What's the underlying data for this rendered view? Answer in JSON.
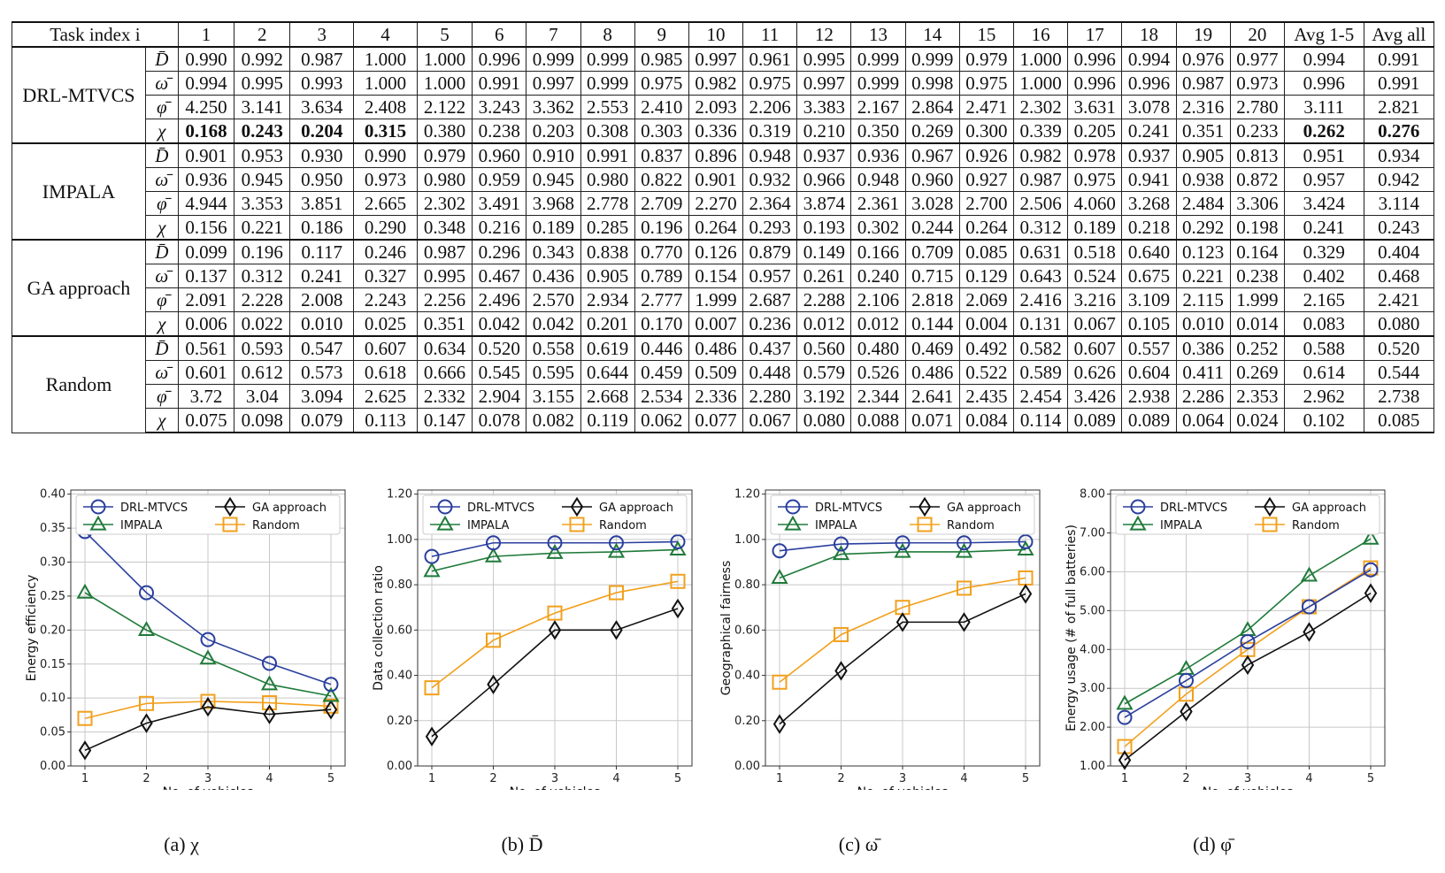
{
  "table": {
    "header": [
      "Task index i",
      "1",
      "2",
      "3",
      "4",
      "5",
      "6",
      "7",
      "8",
      "9",
      "10",
      "11",
      "12",
      "13",
      "14",
      "15",
      "16",
      "17",
      "18",
      "19",
      "20",
      "Avg 1-5",
      "Avg all"
    ],
    "groups": [
      {
        "method": "DRL-MTVCS",
        "rows": [
          {
            "metric": "D̄",
            "values": [
              "0.990",
              "0.992",
              "0.987",
              "1.000",
              "1.000",
              "0.996",
              "0.999",
              "0.999",
              "0.985",
              "0.997",
              "0.961",
              "0.995",
              "0.999",
              "0.999",
              "0.979",
              "1.000",
              "0.996",
              "0.994",
              "0.976",
              "0.977",
              "0.994",
              "0.991"
            ]
          },
          {
            "metric": "ω̄",
            "values": [
              "0.994",
              "0.995",
              "0.993",
              "1.000",
              "1.000",
              "0.991",
              "0.997",
              "0.999",
              "0.975",
              "0.982",
              "0.975",
              "0.997",
              "0.999",
              "0.998",
              "0.975",
              "1.000",
              "0.996",
              "0.996",
              "0.987",
              "0.973",
              "0.996",
              "0.991"
            ]
          },
          {
            "metric": "φ̄",
            "values": [
              "4.250",
              "3.141",
              "3.634",
              "2.408",
              "2.122",
              "3.243",
              "3.362",
              "2.553",
              "2.410",
              "2.093",
              "2.206",
              "3.383",
              "2.167",
              "2.864",
              "2.471",
              "2.302",
              "3.631",
              "3.078",
              "2.316",
              "2.780",
              "3.111",
              "2.821"
            ]
          },
          {
            "metric": "χ",
            "values": [
              "0.168",
              "0.243",
              "0.204",
              "0.315",
              "0.380",
              "0.238",
              "0.203",
              "0.308",
              "0.303",
              "0.336",
              "0.319",
              "0.210",
              "0.350",
              "0.269",
              "0.300",
              "0.339",
              "0.205",
              "0.241",
              "0.351",
              "0.233",
              "0.262",
              "0.276"
            ]
          }
        ]
      },
      {
        "method": "IMPALA",
        "rows": [
          {
            "metric": "D̄",
            "values": [
              "0.901",
              "0.953",
              "0.930",
              "0.990",
              "0.979",
              "0.960",
              "0.910",
              "0.991",
              "0.837",
              "0.896",
              "0.948",
              "0.937",
              "0.936",
              "0.967",
              "0.926",
              "0.982",
              "0.978",
              "0.937",
              "0.905",
              "0.813",
              "0.951",
              "0.934"
            ]
          },
          {
            "metric": "ω̄",
            "values": [
              "0.936",
              "0.945",
              "0.950",
              "0.973",
              "0.980",
              "0.959",
              "0.945",
              "0.980",
              "0.822",
              "0.901",
              "0.932",
              "0.966",
              "0.948",
              "0.960",
              "0.927",
              "0.987",
              "0.975",
              "0.941",
              "0.938",
              "0.872",
              "0.957",
              "0.942"
            ]
          },
          {
            "metric": "φ̄",
            "values": [
              "4.944",
              "3.353",
              "3.851",
              "2.665",
              "2.302",
              "3.491",
              "3.968",
              "2.778",
              "2.709",
              "2.270",
              "2.364",
              "3.874",
              "2.361",
              "3.028",
              "2.700",
              "2.506",
              "4.060",
              "3.268",
              "2.484",
              "3.306",
              "3.424",
              "3.114"
            ]
          },
          {
            "metric": "χ",
            "values": [
              "0.156",
              "0.221",
              "0.186",
              "0.290",
              "0.348",
              "0.216",
              "0.189",
              "0.285",
              "0.196",
              "0.264",
              "0.293",
              "0.193",
              "0.302",
              "0.244",
              "0.264",
              "0.312",
              "0.189",
              "0.218",
              "0.292",
              "0.198",
              "0.241",
              "0.243"
            ]
          }
        ]
      },
      {
        "method": "GA approach",
        "rows": [
          {
            "metric": "D̄",
            "values": [
              "0.099",
              "0.196",
              "0.117",
              "0.246",
              "0.987",
              "0.296",
              "0.343",
              "0.838",
              "0.770",
              "0.126",
              "0.879",
              "0.149",
              "0.166",
              "0.709",
              "0.085",
              "0.631",
              "0.518",
              "0.640",
              "0.123",
              "0.164",
              "0.329",
              "0.404"
            ]
          },
          {
            "metric": "ω̄",
            "values": [
              "0.137",
              "0.312",
              "0.241",
              "0.327",
              "0.995",
              "0.467",
              "0.436",
              "0.905",
              "0.789",
              "0.154",
              "0.957",
              "0.261",
              "0.240",
              "0.715",
              "0.129",
              "0.643",
              "0.524",
              "0.675",
              "0.221",
              "0.238",
              "0.402",
              "0.468"
            ]
          },
          {
            "metric": "φ̄",
            "values": [
              "2.091",
              "2.228",
              "2.008",
              "2.243",
              "2.256",
              "2.496",
              "2.570",
              "2.934",
              "2.777",
              "1.999",
              "2.687",
              "2.288",
              "2.106",
              "2.818",
              "2.069",
              "2.416",
              "3.216",
              "3.109",
              "2.115",
              "1.999",
              "2.165",
              "2.421"
            ]
          },
          {
            "metric": "χ",
            "values": [
              "0.006",
              "0.022",
              "0.010",
              "0.025",
              "0.351",
              "0.042",
              "0.042",
              "0.201",
              "0.170",
              "0.007",
              "0.236",
              "0.012",
              "0.012",
              "0.144",
              "0.004",
              "0.131",
              "0.067",
              "0.105",
              "0.010",
              "0.014",
              "0.083",
              "0.080"
            ]
          }
        ]
      },
      {
        "method": "Random",
        "rows": [
          {
            "metric": "D̄",
            "values": [
              "0.561",
              "0.593",
              "0.547",
              "0.607",
              "0.634",
              "0.520",
              "0.558",
              "0.619",
              "0.446",
              "0.486",
              "0.437",
              "0.560",
              "0.480",
              "0.469",
              "0.492",
              "0.582",
              "0.607",
              "0.557",
              "0.386",
              "0.252",
              "0.588",
              "0.520"
            ]
          },
          {
            "metric": "ω̄",
            "values": [
              "0.601",
              "0.612",
              "0.573",
              "0.618",
              "0.666",
              "0.545",
              "0.595",
              "0.644",
              "0.459",
              "0.509",
              "0.448",
              "0.579",
              "0.526",
              "0.486",
              "0.522",
              "0.589",
              "0.626",
              "0.604",
              "0.411",
              "0.269",
              "0.614",
              "0.544"
            ]
          },
          {
            "metric": "φ̄",
            "values": [
              "3.72",
              "3.04",
              "3.094",
              "2.625",
              "2.332",
              "2.904",
              "3.155",
              "2.668",
              "2.534",
              "2.336",
              "2.280",
              "3.192",
              "2.344",
              "2.641",
              "2.435",
              "2.454",
              "3.426",
              "2.938",
              "2.286",
              "2.353",
              "2.962",
              "2.738"
            ]
          },
          {
            "metric": "χ",
            "values": [
              "0.075",
              "0.098",
              "0.079",
              "0.113",
              "0.147",
              "0.078",
              "0.082",
              "0.119",
              "0.062",
              "0.077",
              "0.067",
              "0.080",
              "0.088",
              "0.071",
              "0.084",
              "0.114",
              "0.089",
              "0.089",
              "0.064",
              "0.024",
              "0.102",
              "0.085"
            ]
          }
        ]
      }
    ]
  },
  "chart_data": [
    {
      "type": "line",
      "id": "chi",
      "xlabel": "No. of vehicles",
      "ylabel": "Energy efficiency",
      "x": [
        1,
        2,
        3,
        4,
        5
      ],
      "ylim": [
        0,
        0.4
      ],
      "yticks": [
        0,
        0.05,
        0.1,
        0.15,
        0.2,
        0.25,
        0.3,
        0.35,
        0.4
      ],
      "ytick_labels": [
        "0.00",
        "0.05",
        "0.10",
        "0.15",
        "0.20",
        "0.25",
        "0.30",
        "0.35",
        "0.40"
      ],
      "caption": "(a) χ",
      "grid": true,
      "legend": "top",
      "series": [
        {
          "name": "DRL-MTVCS",
          "color": "#2a3f9e",
          "marker": "circle",
          "values": [
            0.345,
            0.255,
            0.186,
            0.151,
            0.12
          ]
        },
        {
          "name": "IMPALA",
          "color": "#1f7a3a",
          "marker": "triangle",
          "values": [
            0.255,
            0.2,
            0.158,
            0.12,
            0.103
          ]
        },
        {
          "name": "GA approach",
          "color": "#111111",
          "marker": "diamond",
          "values": [
            0.023,
            0.063,
            0.087,
            0.076,
            0.083
          ]
        },
        {
          "name": "Random",
          "color": "#f2a01c",
          "marker": "square",
          "values": [
            0.07,
            0.092,
            0.095,
            0.093,
            0.088
          ]
        }
      ]
    },
    {
      "type": "line",
      "id": "D",
      "xlabel": "No. of vehicles",
      "ylabel": "Data collection ratio",
      "x": [
        1,
        2,
        3,
        4,
        5
      ],
      "ylim": [
        0,
        1.2
      ],
      "yticks": [
        0,
        0.2,
        0.4,
        0.6,
        0.8,
        1.0,
        1.2
      ],
      "ytick_labels": [
        "0.00",
        "0.20",
        "0.40",
        "0.60",
        "0.80",
        "1.00",
        "1.20"
      ],
      "caption": "(b) D̄",
      "grid": true,
      "legend": "top",
      "series": [
        {
          "name": "DRL-MTVCS",
          "color": "#2a3f9e",
          "marker": "circle",
          "values": [
            0.925,
            0.985,
            0.985,
            0.985,
            0.99
          ]
        },
        {
          "name": "IMPALA",
          "color": "#1f7a3a",
          "marker": "triangle",
          "values": [
            0.86,
            0.925,
            0.94,
            0.945,
            0.955
          ]
        },
        {
          "name": "GA approach",
          "color": "#111111",
          "marker": "diamond",
          "values": [
            0.13,
            0.36,
            0.6,
            0.6,
            0.695
          ]
        },
        {
          "name": "Random",
          "color": "#f2a01c",
          "marker": "square",
          "values": [
            0.345,
            0.555,
            0.675,
            0.765,
            0.815
          ]
        }
      ]
    },
    {
      "type": "line",
      "id": "omega",
      "xlabel": "No. of vehicles",
      "ylabel": "Geographical fairness",
      "x": [
        1,
        2,
        3,
        4,
        5
      ],
      "ylim": [
        0,
        1.2
      ],
      "yticks": [
        0,
        0.2,
        0.4,
        0.6,
        0.8,
        1.0,
        1.2
      ],
      "ytick_labels": [
        "0.00",
        "0.20",
        "0.40",
        "0.60",
        "0.80",
        "1.00",
        "1.20"
      ],
      "caption": "(c) ω̄",
      "grid": true,
      "legend": "top",
      "series": [
        {
          "name": "DRL-MTVCS",
          "color": "#2a3f9e",
          "marker": "circle",
          "values": [
            0.95,
            0.98,
            0.985,
            0.985,
            0.99
          ]
        },
        {
          "name": "IMPALA",
          "color": "#1f7a3a",
          "marker": "triangle",
          "values": [
            0.83,
            0.935,
            0.945,
            0.945,
            0.955
          ]
        },
        {
          "name": "GA approach",
          "color": "#111111",
          "marker": "diamond",
          "values": [
            0.185,
            0.42,
            0.635,
            0.635,
            0.76
          ]
        },
        {
          "name": "Random",
          "color": "#f2a01c",
          "marker": "square",
          "values": [
            0.37,
            0.58,
            0.7,
            0.785,
            0.83
          ]
        }
      ]
    },
    {
      "type": "line",
      "id": "phi",
      "xlabel": "No. of vehicles",
      "ylabel": "Energy usage (# of full batteries)",
      "x": [
        1,
        2,
        3,
        4,
        5
      ],
      "ylim": [
        1,
        8
      ],
      "yticks": [
        1,
        2,
        3,
        4,
        5,
        6,
        7,
        8
      ],
      "ytick_labels": [
        "1.00",
        "2.00",
        "3.00",
        "4.00",
        "5.00",
        "6.00",
        "7.00",
        "8.00"
      ],
      "caption": "(d) φ̄",
      "grid": true,
      "legend": "top",
      "series": [
        {
          "name": "DRL-MTVCS",
          "color": "#2a3f9e",
          "marker": "circle",
          "values": [
            2.25,
            3.2,
            4.2,
            5.1,
            6.05
          ]
        },
        {
          "name": "IMPALA",
          "color": "#1f7a3a",
          "marker": "triangle",
          "values": [
            2.6,
            3.5,
            4.5,
            5.9,
            6.85
          ]
        },
        {
          "name": "GA approach",
          "color": "#111111",
          "marker": "diamond",
          "values": [
            1.15,
            2.4,
            3.6,
            4.45,
            5.45
          ]
        },
        {
          "name": "Random",
          "color": "#f2a01c",
          "marker": "square",
          "values": [
            1.5,
            2.85,
            4.0,
            5.1,
            6.1
          ]
        }
      ]
    }
  ]
}
